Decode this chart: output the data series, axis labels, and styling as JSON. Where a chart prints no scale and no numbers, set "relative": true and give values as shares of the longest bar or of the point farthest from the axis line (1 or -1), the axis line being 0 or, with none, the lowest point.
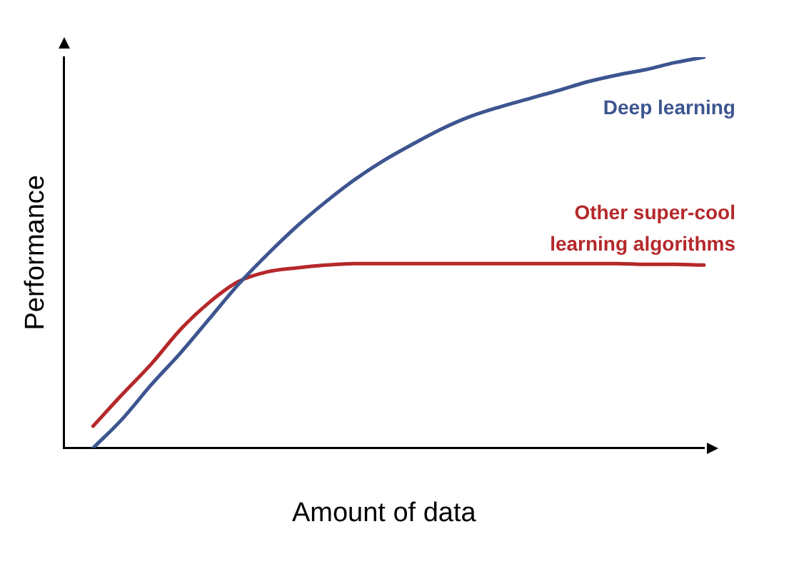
{
  "chart_data": {
    "type": "line",
    "relative": true,
    "xlabel": "Amount of data",
    "ylabel": "Performance",
    "legend": false,
    "grid": false,
    "marker": "none",
    "line_style": "solid",
    "categories": [
      null,
      null,
      null,
      null,
      null,
      null,
      null,
      null,
      null,
      null,
      null,
      null,
      null,
      null,
      null,
      null,
      null,
      null,
      null,
      null,
      null,
      null,
      null
    ],
    "series": [
      {
        "name": "Deep learning",
        "color": "#3d5590",
        "values": [
          null,
          0,
          0.074,
          0.162,
          0.243,
          0.331,
          0.419,
          0.496,
          0.567,
          0.63,
          0.687,
          0.736,
          0.778,
          0.817,
          0.849,
          0.873,
          0.894,
          0.915,
          0.937,
          0.954,
          0.968,
          0.986,
          1
        ]
      },
      {
        "name": "Other super-cool learning algorithms",
        "color": "#b5282a",
        "values": [
          null,
          0.056,
          0.137,
          0.215,
          0.303,
          0.373,
          0.426,
          0.451,
          0.461,
          0.468,
          0.472,
          0.472,
          0.472,
          0.472,
          0.472,
          0.472,
          0.472,
          0.472,
          0.472,
          0.472,
          0.47,
          0.47,
          0.468
        ]
      }
    ]
  }
}
